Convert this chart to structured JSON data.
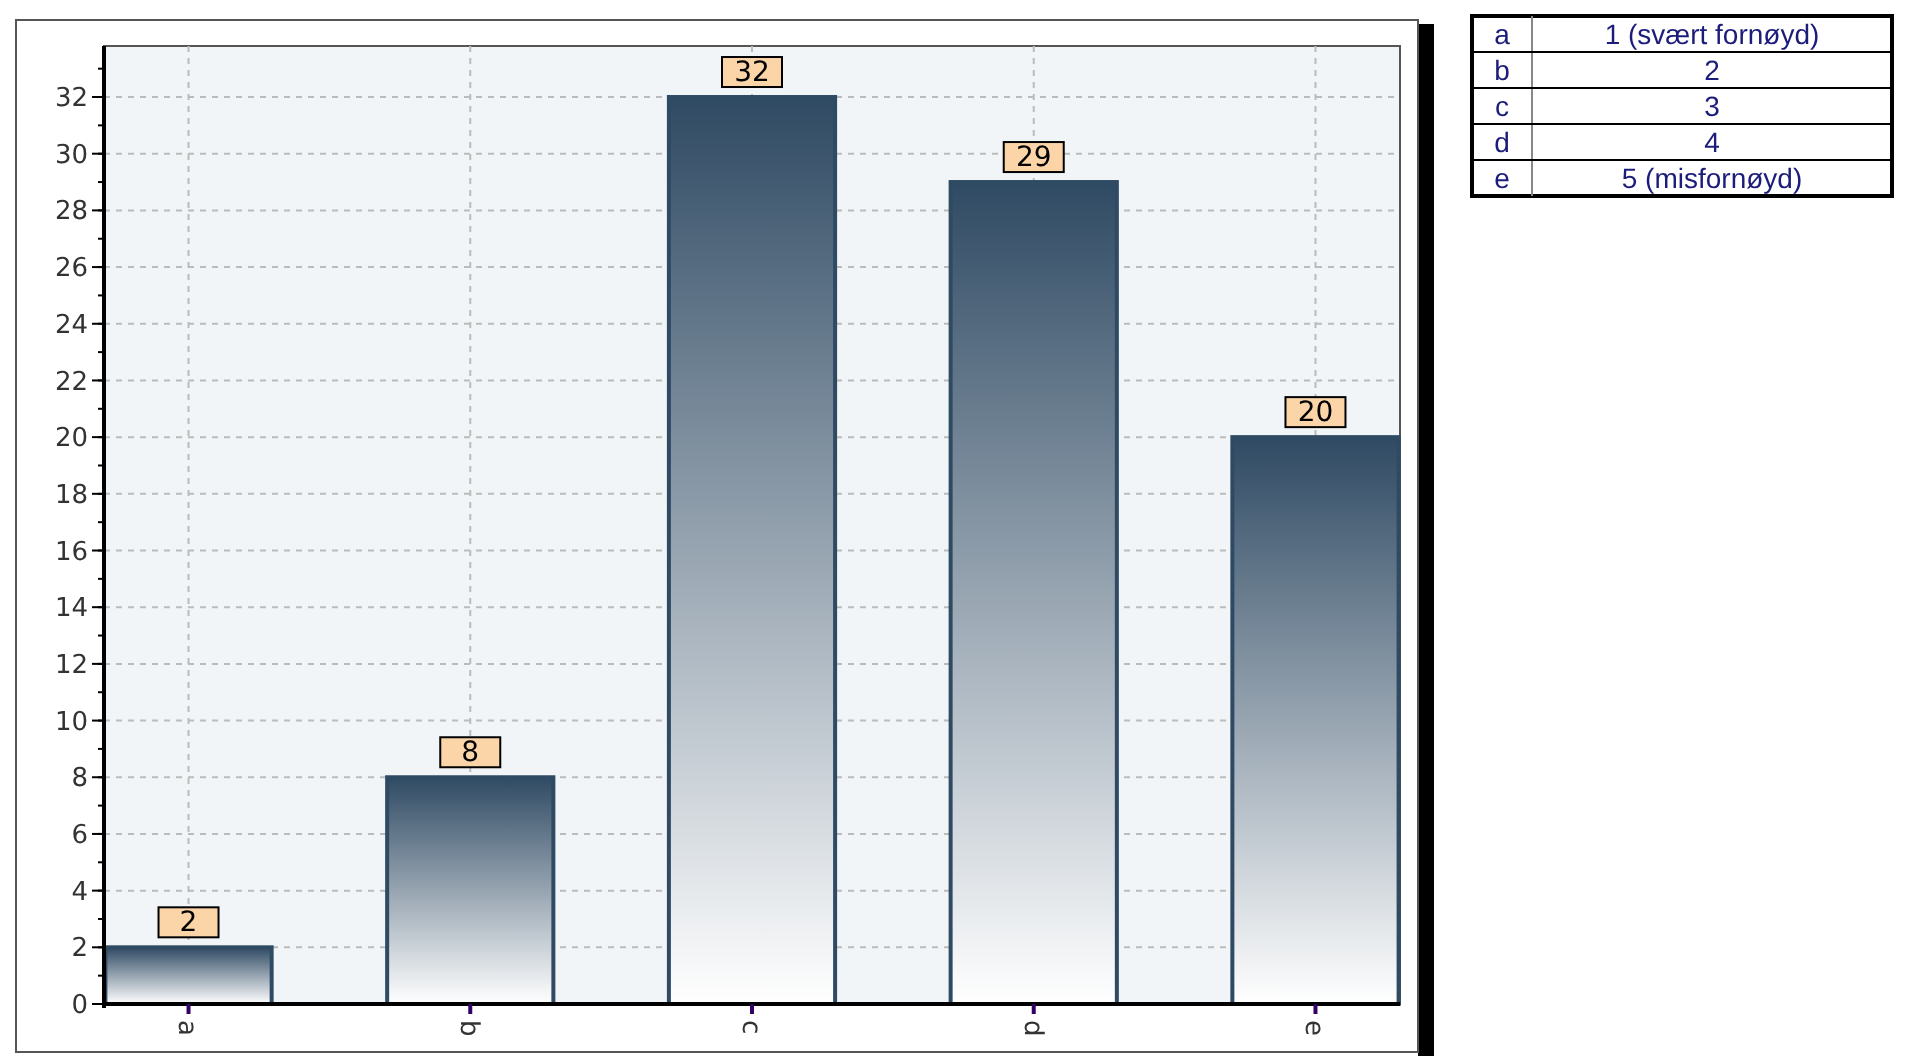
{
  "chart_data": {
    "type": "bar",
    "categories": [
      "a",
      "b",
      "c",
      "d",
      "e"
    ],
    "values": [
      2,
      8,
      32,
      29,
      20
    ],
    "color": "#2f4a63",
    "ylim": [
      0,
      33.8
    ],
    "yticks": [
      0,
      2,
      4,
      6,
      8,
      10,
      12,
      14,
      16,
      18,
      20,
      22,
      24,
      26,
      28,
      30,
      32
    ],
    "grid": true,
    "data_labels": true,
    "annotations": [
      "a",
      "1 (svært fornøyd)",
      "b",
      "2",
      "c",
      "3",
      "d",
      "4",
      "e",
      "5 (misfornøyd)"
    ]
  }
}
